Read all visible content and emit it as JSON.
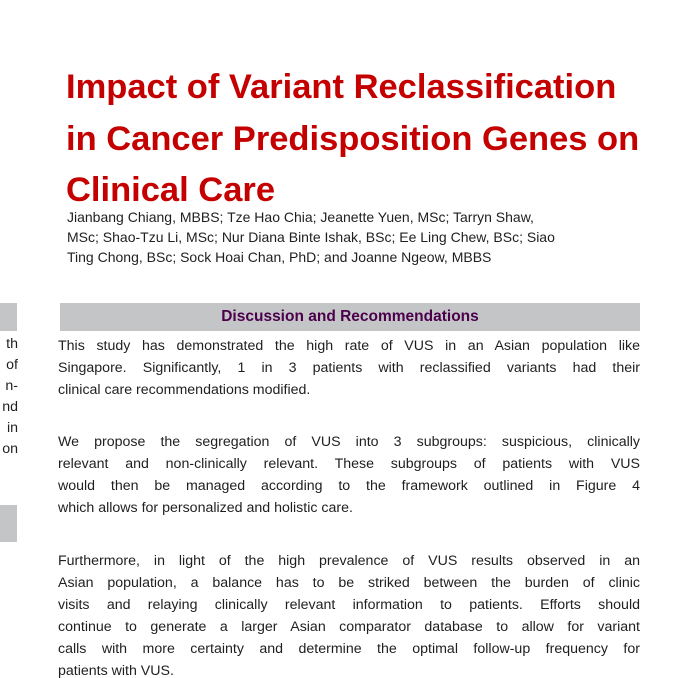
{
  "document": {
    "title_lines": [
      "Impact of Variant Reclassification",
      "in Cancer Predisposition Genes on",
      "Clinical Care"
    ],
    "author_lines": [
      "Jianbang Chiang, MBBS; Tze Hao Chia; Jeanette Yuen, MSc; Tarryn Shaw,",
      "MSc; Shao-Tzu Li, MSc; Nur Diana Binte Ishak, BSc; Ee Ling Chew, BSc; Siao",
      "Ting Chong, BSc; Sock Hoai Chan, PhD; and Joanne Ngeow, MBBS"
    ],
    "section_header": "Discussion and Recommendations",
    "paragraphs": [
      {
        "lines": [
          "This study has demonstrated the high rate of VUS in an Asian population like",
          "Singapore. Significantly, 1 in 3 patients with reclassified variants had their",
          "clinical care recommendations modified."
        ]
      },
      {
        "lines": [
          "We propose the segregation of VUS into 3 subgroups: suspicious, clinically",
          "relevant and non-clinically relevant. These subgroups of patients with VUS",
          "would then be managed according to the framework outlined in Figure 4",
          "which allows for personalized and holistic care."
        ]
      },
      {
        "lines": [
          "Furthermore, in light of the high prevalence of VUS results observed in an",
          "Asian population, a balance has to be striked between the burden of clinic",
          "visits and relaying clinically relevant information to patients. Efforts should",
          "continue to generate a larger Asian comparator database to allow for variant",
          "calls with more certainty and determine the optimal follow-up frequency for",
          "patients with VUS."
        ]
      }
    ],
    "left_column": {
      "fragments": [
        "th",
        "of",
        "n-",
        "nd",
        "in",
        "on"
      ]
    },
    "colors": {
      "title": "#C40000",
      "section_header_text": "#4C004C",
      "section_bar_background": "#C4C5C7",
      "body_text": "#1F1F1F"
    }
  }
}
